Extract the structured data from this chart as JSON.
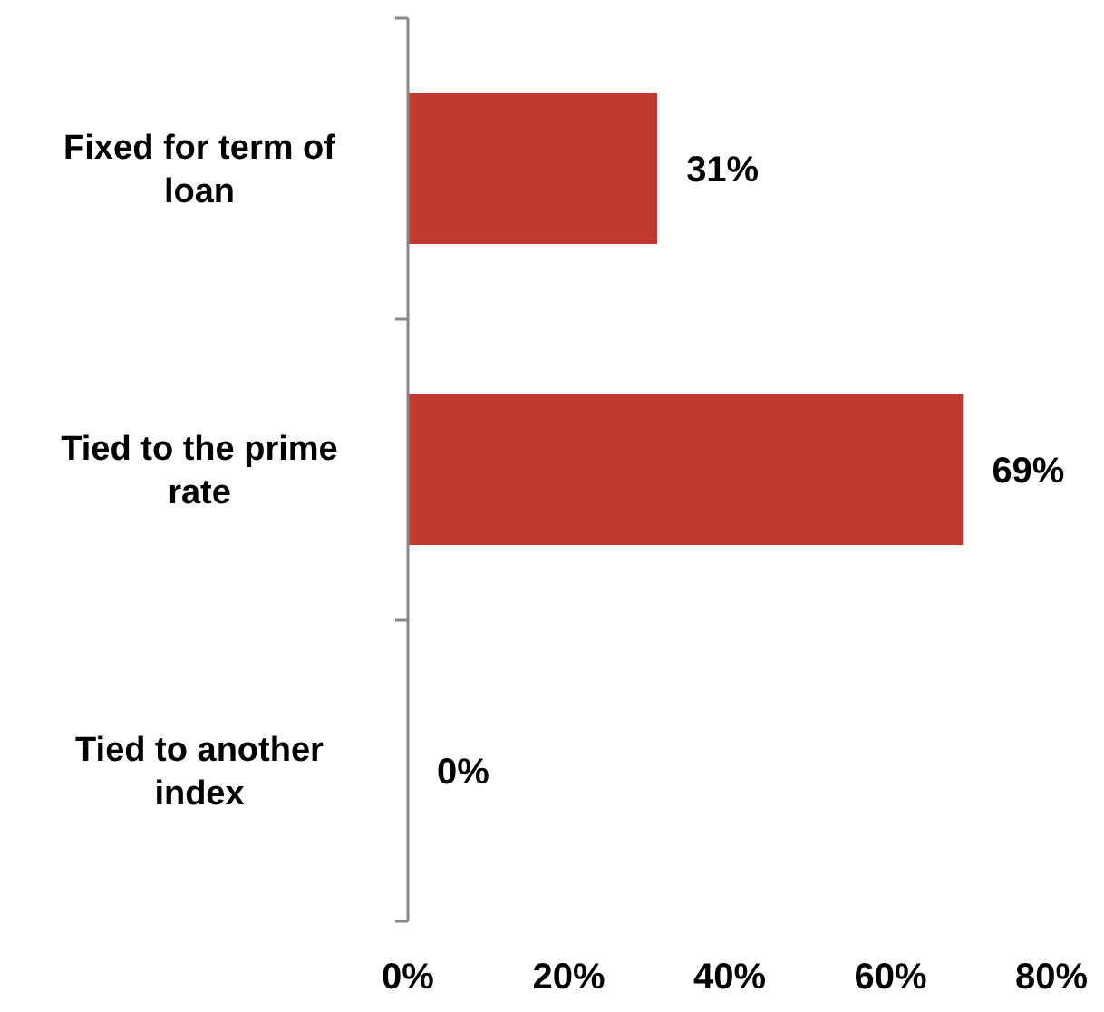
{
  "chart_data": {
    "type": "bar",
    "orientation": "horizontal",
    "categories": [
      "Fixed for term of loan",
      "Tied to the prime rate",
      "Tied to another index"
    ],
    "values": [
      31,
      69,
      0
    ],
    "color": "#c0392f",
    "value_labels": [
      "31%",
      "69%",
      "0%"
    ],
    "xlim": [
      0,
      80
    ],
    "xticks": [
      {
        "value": 0,
        "label": "0%"
      },
      {
        "value": 20,
        "label": "20%"
      },
      {
        "value": 40,
        "label": "40%"
      },
      {
        "value": 60,
        "label": "60%"
      },
      {
        "value": 80,
        "label": "80%"
      }
    ],
    "grid": false
  }
}
